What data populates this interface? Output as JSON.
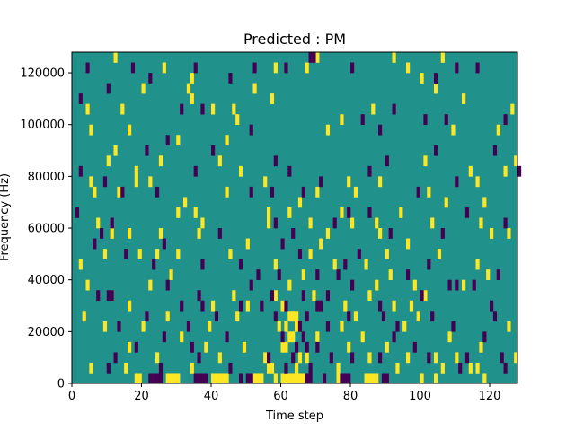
{
  "chart_data": {
    "type": "heatmap",
    "title": "Predicted : PM",
    "xlabel": "Time step",
    "ylabel": "Frequency (Hz)",
    "xlim": [
      0,
      128
    ],
    "ylim": [
      0,
      128000
    ],
    "x_ticks": [
      0,
      20,
      40,
      60,
      80,
      100,
      120
    ],
    "y_ticks": [
      0,
      20000,
      40000,
      60000,
      80000,
      100000,
      120000
    ],
    "x_tick_labels": [
      "0",
      "20",
      "40",
      "60",
      "80",
      "100",
      "120"
    ],
    "y_tick_labels": [
      "0",
      "20000",
      "40000",
      "60000",
      "80000",
      "100000",
      "120000"
    ],
    "grid": false,
    "colors": {
      "background": "#21918c",
      "high": "#fde725",
      "low": "#440154"
    },
    "bin_width": 1,
    "bin_height": 4000,
    "high_cells": [
      [
        12,
        124000
      ],
      [
        20,
        112000
      ],
      [
        26,
        120000
      ],
      [
        67,
        120000
      ],
      [
        70,
        124000
      ],
      [
        92,
        124000
      ],
      [
        106,
        124000
      ],
      [
        4,
        104000
      ],
      [
        14,
        104000
      ],
      [
        34,
        108000
      ],
      [
        40,
        104000
      ],
      [
        46,
        104000
      ],
      [
        57,
        108000
      ],
      [
        112,
        108000
      ],
      [
        5,
        96000
      ],
      [
        16,
        96000
      ],
      [
        30,
        92000
      ],
      [
        44,
        92000
      ],
      [
        73,
        96000
      ],
      [
        122,
        96000
      ],
      [
        10,
        84000
      ],
      [
        18,
        80000
      ],
      [
        25,
        84000
      ],
      [
        42,
        84000
      ],
      [
        48,
        80000
      ],
      [
        88,
        76000
      ],
      [
        101,
        84000
      ],
      [
        114,
        80000
      ],
      [
        5,
        76000
      ],
      [
        6,
        72000
      ],
      [
        18,
        76000
      ],
      [
        22,
        76000
      ],
      [
        32,
        68000
      ],
      [
        55,
        76000
      ],
      [
        70,
        72000
      ],
      [
        79,
        76000
      ],
      [
        81,
        72000
      ],
      [
        102,
        72000
      ],
      [
        116,
        76000
      ],
      [
        127,
        84000
      ],
      [
        7,
        60000
      ],
      [
        11,
        56000
      ],
      [
        16,
        56000
      ],
      [
        25,
        56000
      ],
      [
        30,
        64000
      ],
      [
        36,
        56000
      ],
      [
        62,
        64000
      ],
      [
        77,
        64000
      ],
      [
        80,
        60000
      ],
      [
        87,
        60000
      ],
      [
        94,
        64000
      ],
      [
        103,
        60000
      ],
      [
        117,
        60000
      ],
      [
        120,
        56000
      ],
      [
        125,
        56000
      ],
      [
        2,
        44000
      ],
      [
        9,
        48000
      ],
      [
        19,
        48000
      ],
      [
        30,
        48000
      ],
      [
        45,
        48000
      ],
      [
        58,
        44000
      ],
      [
        68,
        48000
      ],
      [
        84,
        44000
      ],
      [
        91,
        40000
      ],
      [
        105,
        48000
      ],
      [
        116,
        44000
      ],
      [
        119,
        40000
      ],
      [
        4,
        36000
      ],
      [
        11,
        32000
      ],
      [
        16,
        28000
      ],
      [
        22,
        36000
      ],
      [
        40,
        28000
      ],
      [
        46,
        32000
      ],
      [
        50,
        28000
      ],
      [
        58,
        32000
      ],
      [
        69,
        32000
      ],
      [
        78,
        28000
      ],
      [
        85,
        32000
      ],
      [
        87,
        36000
      ],
      [
        97,
        28000
      ],
      [
        112,
        36000
      ],
      [
        3,
        24000
      ],
      [
        9,
        20000
      ],
      [
        20,
        20000
      ],
      [
        27,
        24000
      ],
      [
        31,
        16000
      ],
      [
        39,
        20000
      ],
      [
        47,
        24000
      ],
      [
        59,
        20000
      ],
      [
        63,
        24000
      ],
      [
        70,
        16000
      ],
      [
        77,
        20000
      ],
      [
        83,
        16000
      ],
      [
        90,
        12000
      ],
      [
        95,
        20000
      ],
      [
        99,
        24000
      ],
      [
        108,
        16000
      ],
      [
        117,
        12000
      ],
      [
        125,
        20000
      ],
      [
        16,
        12000
      ],
      [
        24,
        8000
      ],
      [
        38,
        12000
      ],
      [
        42,
        8000
      ],
      [
        49,
        12000
      ],
      [
        61,
        12000
      ],
      [
        67,
        8000
      ],
      [
        79,
        12000
      ],
      [
        85,
        8000
      ],
      [
        96,
        8000
      ],
      [
        104,
        8000
      ],
      [
        116,
        4000
      ],
      [
        127,
        8000
      ],
      [
        5,
        4000
      ],
      [
        15,
        4000
      ],
      [
        34,
        4000
      ],
      [
        57,
        4000
      ],
      [
        76,
        4000
      ],
      [
        93,
        4000
      ],
      [
        106,
        4000
      ],
      [
        110,
        8000
      ],
      [
        114,
        4000
      ],
      [
        18,
        0
      ],
      [
        19,
        0
      ],
      [
        27,
        0
      ],
      [
        28,
        0
      ],
      [
        29,
        0
      ],
      [
        30,
        0
      ],
      [
        40,
        0
      ],
      [
        41,
        0
      ],
      [
        42,
        0
      ],
      [
        43,
        0
      ],
      [
        44,
        0
      ],
      [
        52,
        0
      ],
      [
        53,
        0
      ],
      [
        60,
        0
      ],
      [
        61,
        0
      ],
      [
        62,
        0
      ],
      [
        63,
        0
      ],
      [
        64,
        0
      ],
      [
        76,
        0
      ],
      [
        84,
        0
      ],
      [
        85,
        0
      ],
      [
        86,
        0
      ],
      [
        87,
        0
      ],
      [
        100,
        0
      ],
      [
        104,
        0
      ],
      [
        118,
        0
      ],
      [
        60,
        12000
      ],
      [
        62,
        16000
      ],
      [
        63,
        16000
      ],
      [
        61,
        20000
      ],
      [
        64,
        20000
      ],
      [
        62,
        24000
      ],
      [
        63,
        24000
      ],
      [
        64,
        24000
      ],
      [
        54,
        0
      ],
      [
        56,
        4000
      ],
      [
        55,
        8000
      ],
      [
        58,
        0
      ],
      [
        65,
        0
      ],
      [
        66,
        0
      ],
      [
        64,
        4000
      ],
      [
        65,
        8000
      ],
      [
        60,
        28000
      ],
      [
        62,
        36000
      ],
      [
        66,
        40000
      ],
      [
        71,
        52000
      ],
      [
        73,
        56000
      ],
      [
        68,
        60000
      ],
      [
        65,
        68000
      ],
      [
        75,
        44000
      ],
      [
        50,
        52000
      ],
      [
        56,
        60000
      ],
      [
        56,
        64000
      ],
      [
        44,
        72000
      ],
      [
        37,
        60000
      ],
      [
        35,
        64000
      ],
      [
        28,
        40000
      ],
      [
        24,
        48000
      ],
      [
        13,
        72000
      ],
      [
        12,
        88000
      ],
      [
        33,
        112000
      ],
      [
        34,
        116000
      ],
      [
        47,
        100000
      ],
      [
        52,
        112000
      ],
      [
        58,
        120000
      ],
      [
        77,
        100000
      ],
      [
        86,
        104000
      ],
      [
        96,
        120000
      ],
      [
        100,
        116000
      ],
      [
        104,
        112000
      ],
      [
        109,
        96000
      ],
      [
        126,
        104000
      ],
      [
        124,
        80000
      ],
      [
        118,
        68000
      ],
      [
        107,
        68000
      ],
      [
        96,
        52000
      ],
      [
        90,
        48000
      ],
      [
        88,
        56000
      ],
      [
        98,
        36000
      ],
      [
        101,
        32000
      ],
      [
        92,
        28000
      ],
      [
        81,
        24000
      ]
    ],
    "low_cells": [
      [
        4,
        120000
      ],
      [
        10,
        112000
      ],
      [
        17,
        120000
      ],
      [
        22,
        116000
      ],
      [
        31,
        104000
      ],
      [
        35,
        120000
      ],
      [
        52,
        120000
      ],
      [
        61,
        120000
      ],
      [
        68,
        124000
      ],
      [
        69,
        124000
      ],
      [
        80,
        120000
      ],
      [
        92,
        104000
      ],
      [
        104,
        116000
      ],
      [
        110,
        120000
      ],
      [
        116,
        120000
      ],
      [
        2,
        108000
      ],
      [
        37,
        104000
      ],
      [
        45,
        116000
      ],
      [
        51,
        96000
      ],
      [
        83,
        100000
      ],
      [
        88,
        96000
      ],
      [
        101,
        100000
      ],
      [
        107,
        100000
      ],
      [
        124,
        100000
      ],
      [
        21,
        88000
      ],
      [
        27,
        92000
      ],
      [
        40,
        88000
      ],
      [
        58,
        84000
      ],
      [
        62,
        80000
      ],
      [
        90,
        84000
      ],
      [
        104,
        88000
      ],
      [
        121,
        88000
      ],
      [
        128,
        80000
      ],
      [
        2,
        80000
      ],
      [
        9,
        76000
      ],
      [
        14,
        72000
      ],
      [
        24,
        72000
      ],
      [
        35,
        80000
      ],
      [
        51,
        72000
      ],
      [
        57,
        72000
      ],
      [
        66,
        72000
      ],
      [
        71,
        76000
      ],
      [
        85,
        80000
      ],
      [
        99,
        72000
      ],
      [
        110,
        76000
      ],
      [
        1,
        64000
      ],
      [
        8,
        56000
      ],
      [
        11,
        60000
      ],
      [
        26,
        52000
      ],
      [
        42,
        56000
      ],
      [
        58,
        60000
      ],
      [
        60,
        52000
      ],
      [
        63,
        56000
      ],
      [
        75,
        60000
      ],
      [
        79,
        64000
      ],
      [
        85,
        64000
      ],
      [
        91,
        56000
      ],
      [
        106,
        56000
      ],
      [
        113,
        64000
      ],
      [
        124,
        60000
      ],
      [
        6,
        52000
      ],
      [
        15,
        48000
      ],
      [
        23,
        44000
      ],
      [
        37,
        44000
      ],
      [
        48,
        44000
      ],
      [
        53,
        40000
      ],
      [
        59,
        40000
      ],
      [
        65,
        48000
      ],
      [
        70,
        40000
      ],
      [
        78,
        44000
      ],
      [
        82,
        48000
      ],
      [
        96,
        40000
      ],
      [
        102,
        44000
      ],
      [
        110,
        36000
      ],
      [
        122,
        40000
      ],
      [
        7,
        32000
      ],
      [
        10,
        32000
      ],
      [
        11,
        32000
      ],
      [
        27,
        36000
      ],
      [
        31,
        28000
      ],
      [
        36,
        32000
      ],
      [
        48,
        28000
      ],
      [
        51,
        36000
      ],
      [
        57,
        32000
      ],
      [
        66,
        32000
      ],
      [
        70,
        28000
      ],
      [
        80,
        36000
      ],
      [
        88,
        28000
      ],
      [
        100,
        32000
      ],
      [
        108,
        36000
      ],
      [
        115,
        36000
      ],
      [
        120,
        28000
      ],
      [
        13,
        20000
      ],
      [
        21,
        24000
      ],
      [
        26,
        16000
      ],
      [
        33,
        20000
      ],
      [
        37,
        28000
      ],
      [
        41,
        24000
      ],
      [
        44,
        16000
      ],
      [
        54,
        28000
      ],
      [
        65,
        20000
      ],
      [
        67,
        24000
      ],
      [
        73,
        20000
      ],
      [
        79,
        24000
      ],
      [
        89,
        24000
      ],
      [
        93,
        20000
      ],
      [
        103,
        24000
      ],
      [
        109,
        20000
      ],
      [
        121,
        24000
      ],
      [
        118,
        16000
      ],
      [
        12,
        8000
      ],
      [
        18,
        12000
      ],
      [
        25,
        4000
      ],
      [
        34,
        12000
      ],
      [
        36,
        8000
      ],
      [
        45,
        4000
      ],
      [
        48,
        0
      ],
      [
        56,
        8000
      ],
      [
        68,
        4000
      ],
      [
        70,
        12000
      ],
      [
        74,
        8000
      ],
      [
        80,
        8000
      ],
      [
        88,
        8000
      ],
      [
        92,
        16000
      ],
      [
        98,
        12000
      ],
      [
        102,
        8000
      ],
      [
        113,
        8000
      ],
      [
        123,
        8000
      ],
      [
        10,
        4000
      ],
      [
        22,
        0
      ],
      [
        23,
        0
      ],
      [
        24,
        0
      ],
      [
        25,
        0
      ],
      [
        35,
        0
      ],
      [
        36,
        0
      ],
      [
        37,
        0
      ],
      [
        38,
        0
      ],
      [
        50,
        0
      ],
      [
        51,
        0
      ],
      [
        67,
        0
      ],
      [
        68,
        0
      ],
      [
        72,
        0
      ],
      [
        77,
        0
      ],
      [
        78,
        0
      ],
      [
        79,
        0
      ],
      [
        89,
        0
      ],
      [
        90,
        0
      ],
      [
        111,
        4000
      ],
      [
        124,
        4000
      ],
      [
        61,
        4000
      ],
      [
        63,
        8000
      ],
      [
        64,
        12000
      ],
      [
        66,
        16000
      ],
      [
        67,
        12000
      ],
      [
        60,
        16000
      ],
      [
        58,
        24000
      ],
      [
        61,
        28000
      ],
      [
        71,
        28000
      ],
      [
        73,
        32000
      ],
      [
        76,
        40000
      ]
    ]
  }
}
